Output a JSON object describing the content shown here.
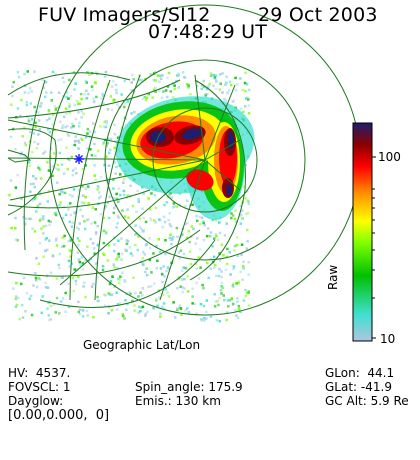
{
  "header": {
    "instrument": "FUV Imagers/SI12",
    "date": "29 Oct 2003",
    "time": "07:48:29 UT"
  },
  "map": {
    "projection_label": "Geographic Lat/Lon"
  },
  "colorbar": {
    "axis_label": "Raw",
    "tick_max": "100",
    "tick_min": "10",
    "log_scale": true,
    "min_value": 10,
    "max_value": 150,
    "colors": [
      "#b0c4de",
      "#40e0d0",
      "#00c000",
      "#7fff00",
      "#ffff00",
      "#ff8c00",
      "#ff0000",
      "#8b0000",
      "#1e1e6e"
    ]
  },
  "info": {
    "hv": "HV:  4537.",
    "fovscl": "FOVSCL: 1",
    "dayglow": "Dayglow:",
    "bracket": "[0.00,0.000,  0]",
    "spin_angle": "Spin_angle: 175.9",
    "emis": "Emis.: 130 km",
    "glon": "GLon:  44.1",
    "glat": "GLat: -41.9",
    "gc_alt": "GC Alt: 5.9 Re"
  },
  "colors": {
    "grid": "#1e7a1e",
    "marker": "#1a1aff",
    "background": "#ffffff"
  }
}
